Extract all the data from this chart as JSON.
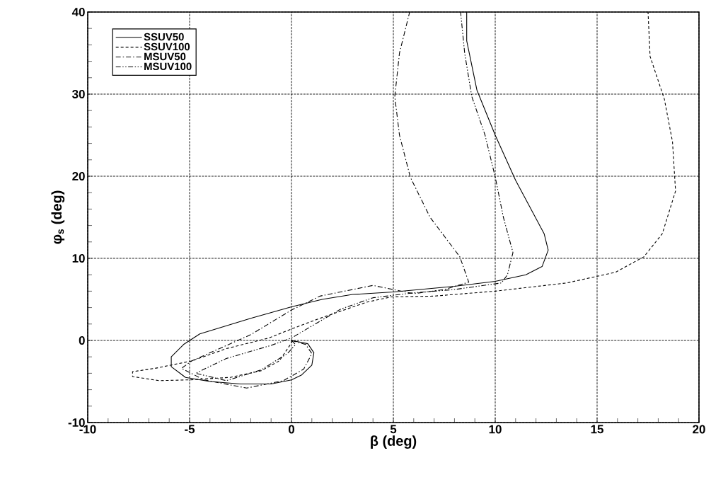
{
  "chart_data": {
    "type": "line",
    "xlabel": "β (deg)",
    "ylabel": "φ$_{s}$ (deg)",
    "xlim": [
      -10,
      20
    ],
    "ylim": [
      -10,
      40
    ],
    "xticks": [
      -10,
      -5,
      0,
      5,
      10,
      15,
      20
    ],
    "yticks": [
      -10,
      0,
      10,
      20,
      30,
      40
    ],
    "grid": true,
    "legend": "top left",
    "marker": "none",
    "series": [
      {
        "name": "SSUV50",
        "color": "#000000",
        "line_style": "solid",
        "x": [
          0,
          0.8,
          1.1,
          1.0,
          0.5,
          0,
          -1,
          -2.5,
          -4,
          -5.2,
          -5.9,
          -5.9,
          -5.3,
          -4.5,
          -2,
          0,
          1.5,
          3,
          5,
          8,
          10,
          11.5,
          12.3,
          12.6,
          12.4,
          11,
          10,
          9.1,
          8.6,
          8.6
        ],
        "values": [
          0,
          -0.4,
          -1.5,
          -3,
          -4.2,
          -4.8,
          -5.3,
          -5.3,
          -5,
          -4.5,
          -3.2,
          -2,
          -0.5,
          0.8,
          2.7,
          4.1,
          5,
          5.6,
          5.9,
          6.6,
          7.2,
          8,
          9,
          11,
          13,
          19.5,
          25,
          30.5,
          36.5,
          40
        ]
      },
      {
        "name": "SSUV100",
        "color": "#000000",
        "line_style": "dashed",
        "x": [
          0,
          0,
          -0.6,
          -1.5,
          -3,
          -5,
          -6.5,
          -7.8,
          -7.8,
          -6.7,
          -4.9,
          -3.2,
          -1.1,
          0,
          1.4,
          3.75,
          4.9,
          7,
          10,
          13.5,
          15.9,
          17.3,
          18.2,
          18.85,
          18.7,
          18.3,
          17.6,
          17.5
        ],
        "values": [
          0,
          -0.3,
          -2.5,
          -3.7,
          -4.5,
          -4.8,
          -4.9,
          -4.4,
          -3.8,
          -3.4,
          -2.5,
          -1.0,
          0.3,
          1.4,
          2.7,
          4.7,
          5.3,
          5.4,
          6,
          7,
          8.3,
          10.2,
          13,
          18.2,
          24.2,
          29.4,
          34.6,
          40
        ]
      },
      {
        "name": "MSUV50",
        "color": "#000000",
        "line_style": "dashdot",
        "x": [
          0,
          0.7,
          1.0,
          0.6,
          -0.4,
          -2.2,
          -4.3,
          -5.4,
          -4.9,
          -2,
          0,
          1.4,
          4,
          5,
          6,
          7.5,
          8.7,
          8.26,
          6.8,
          5.83,
          5.3,
          5.07,
          5.3,
          5.8
        ],
        "values": [
          0,
          -0.5,
          -1.6,
          -3.5,
          -4.9,
          -5.8,
          -4.8,
          -3.4,
          -2.5,
          0.7,
          3.7,
          5.4,
          6.7,
          6.2,
          5.7,
          6.2,
          7.1,
          10.2,
          15,
          19.9,
          25,
          29.7,
          35,
          40
        ]
      },
      {
        "name": "MSUV100",
        "color": "#000000",
        "line_style": "dashdotdot",
        "x": [
          0,
          0.2,
          -0.2,
          -1.5,
          -3.2,
          -4.7,
          -3.2,
          -1.0,
          0,
          2.4,
          4,
          6,
          8,
          10.3,
          10.6,
          10.87,
          10.4,
          10,
          9.5,
          8.85,
          8.5,
          8.3
        ],
        "values": [
          0,
          -0.5,
          -1.6,
          -3.6,
          -4.9,
          -4.0,
          -2.2,
          -0.6,
          0.3,
          3.8,
          5.2,
          5.8,
          6.2,
          7,
          8,
          10.7,
          15,
          19.9,
          25,
          29.7,
          35,
          40
        ]
      }
    ]
  }
}
